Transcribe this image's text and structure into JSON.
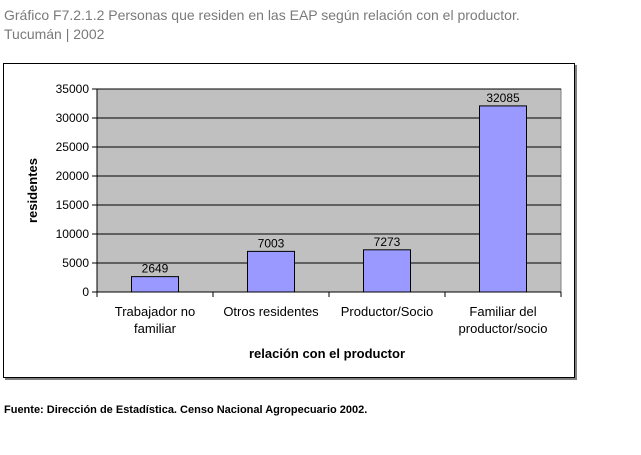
{
  "caption": {
    "line1": "Gráfico F7.2.1.2 Personas que residen en las EAP según relación con el productor.",
    "line2": "Tucumán | 2002"
  },
  "source": "Fuente: Dirección de Estadística. Censo Nacional Agropecuario 2002.",
  "colors": {
    "plot_bg": "#c0c0c0",
    "bar_fill": "#9999ff",
    "bar_stroke": "#000000"
  },
  "chart_data": {
    "type": "bar",
    "title": "",
    "xlabel": "relación con el productor",
    "ylabel": "residentes",
    "categories": [
      [
        "Trabajador no",
        "familiar"
      ],
      [
        "Otros residentes"
      ],
      [
        "Productor/Socio"
      ],
      [
        "Familiar del",
        "productor/socio"
      ]
    ],
    "values": [
      2649,
      7003,
      7273,
      32085
    ],
    "ylim": [
      0,
      35000
    ],
    "yticks": [
      0,
      5000,
      10000,
      15000,
      20000,
      25000,
      30000,
      35000
    ],
    "grid": true,
    "legend": "none"
  }
}
